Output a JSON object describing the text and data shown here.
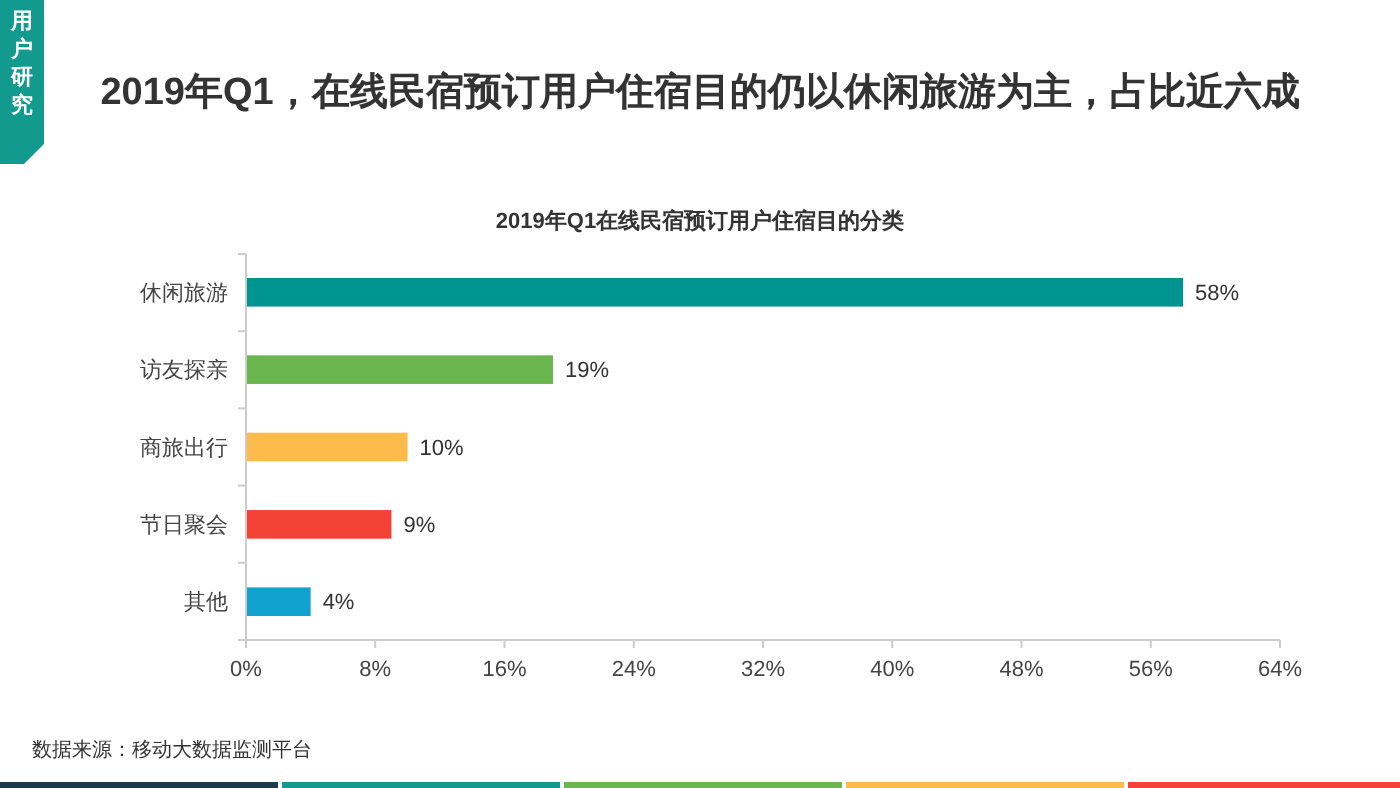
{
  "chart_data": {
    "type": "bar",
    "orientation": "horizontal",
    "title": "2019年Q1，在线民宿预订用户住宿目的仍以休闲旅游为主，占比近六成",
    "subtitle": "2019年Q1在线民宿预订用户住宿目的分类",
    "categories": [
      "休闲旅游",
      "访友探亲",
      "商旅出行",
      "节日聚会",
      "其他"
    ],
    "values": [
      58,
      19,
      10,
      9,
      4
    ],
    "colors": [
      "#009490",
      "#6ab64f",
      "#fdbb4c",
      "#f44336",
      "#11a1cf"
    ],
    "value_labels": [
      "58%",
      "19%",
      "10%",
      "9%",
      "4%"
    ],
    "xlim": [
      0,
      64
    ],
    "xticks": [
      {
        "value": 0,
        "label": "0%"
      },
      {
        "value": 8,
        "label": "8%"
      },
      {
        "value": 16,
        "label": "16%"
      },
      {
        "value": 24,
        "label": "24%"
      },
      {
        "value": 32,
        "label": "32%"
      },
      {
        "value": 40,
        "label": "40%"
      },
      {
        "value": 48,
        "label": "48%"
      },
      {
        "value": 56,
        "label": "56%"
      },
      {
        "value": 64,
        "label": "64%"
      }
    ],
    "annotations": [
      "用户研究",
      "数据来源：移动大数据监测平台"
    ]
  }
}
